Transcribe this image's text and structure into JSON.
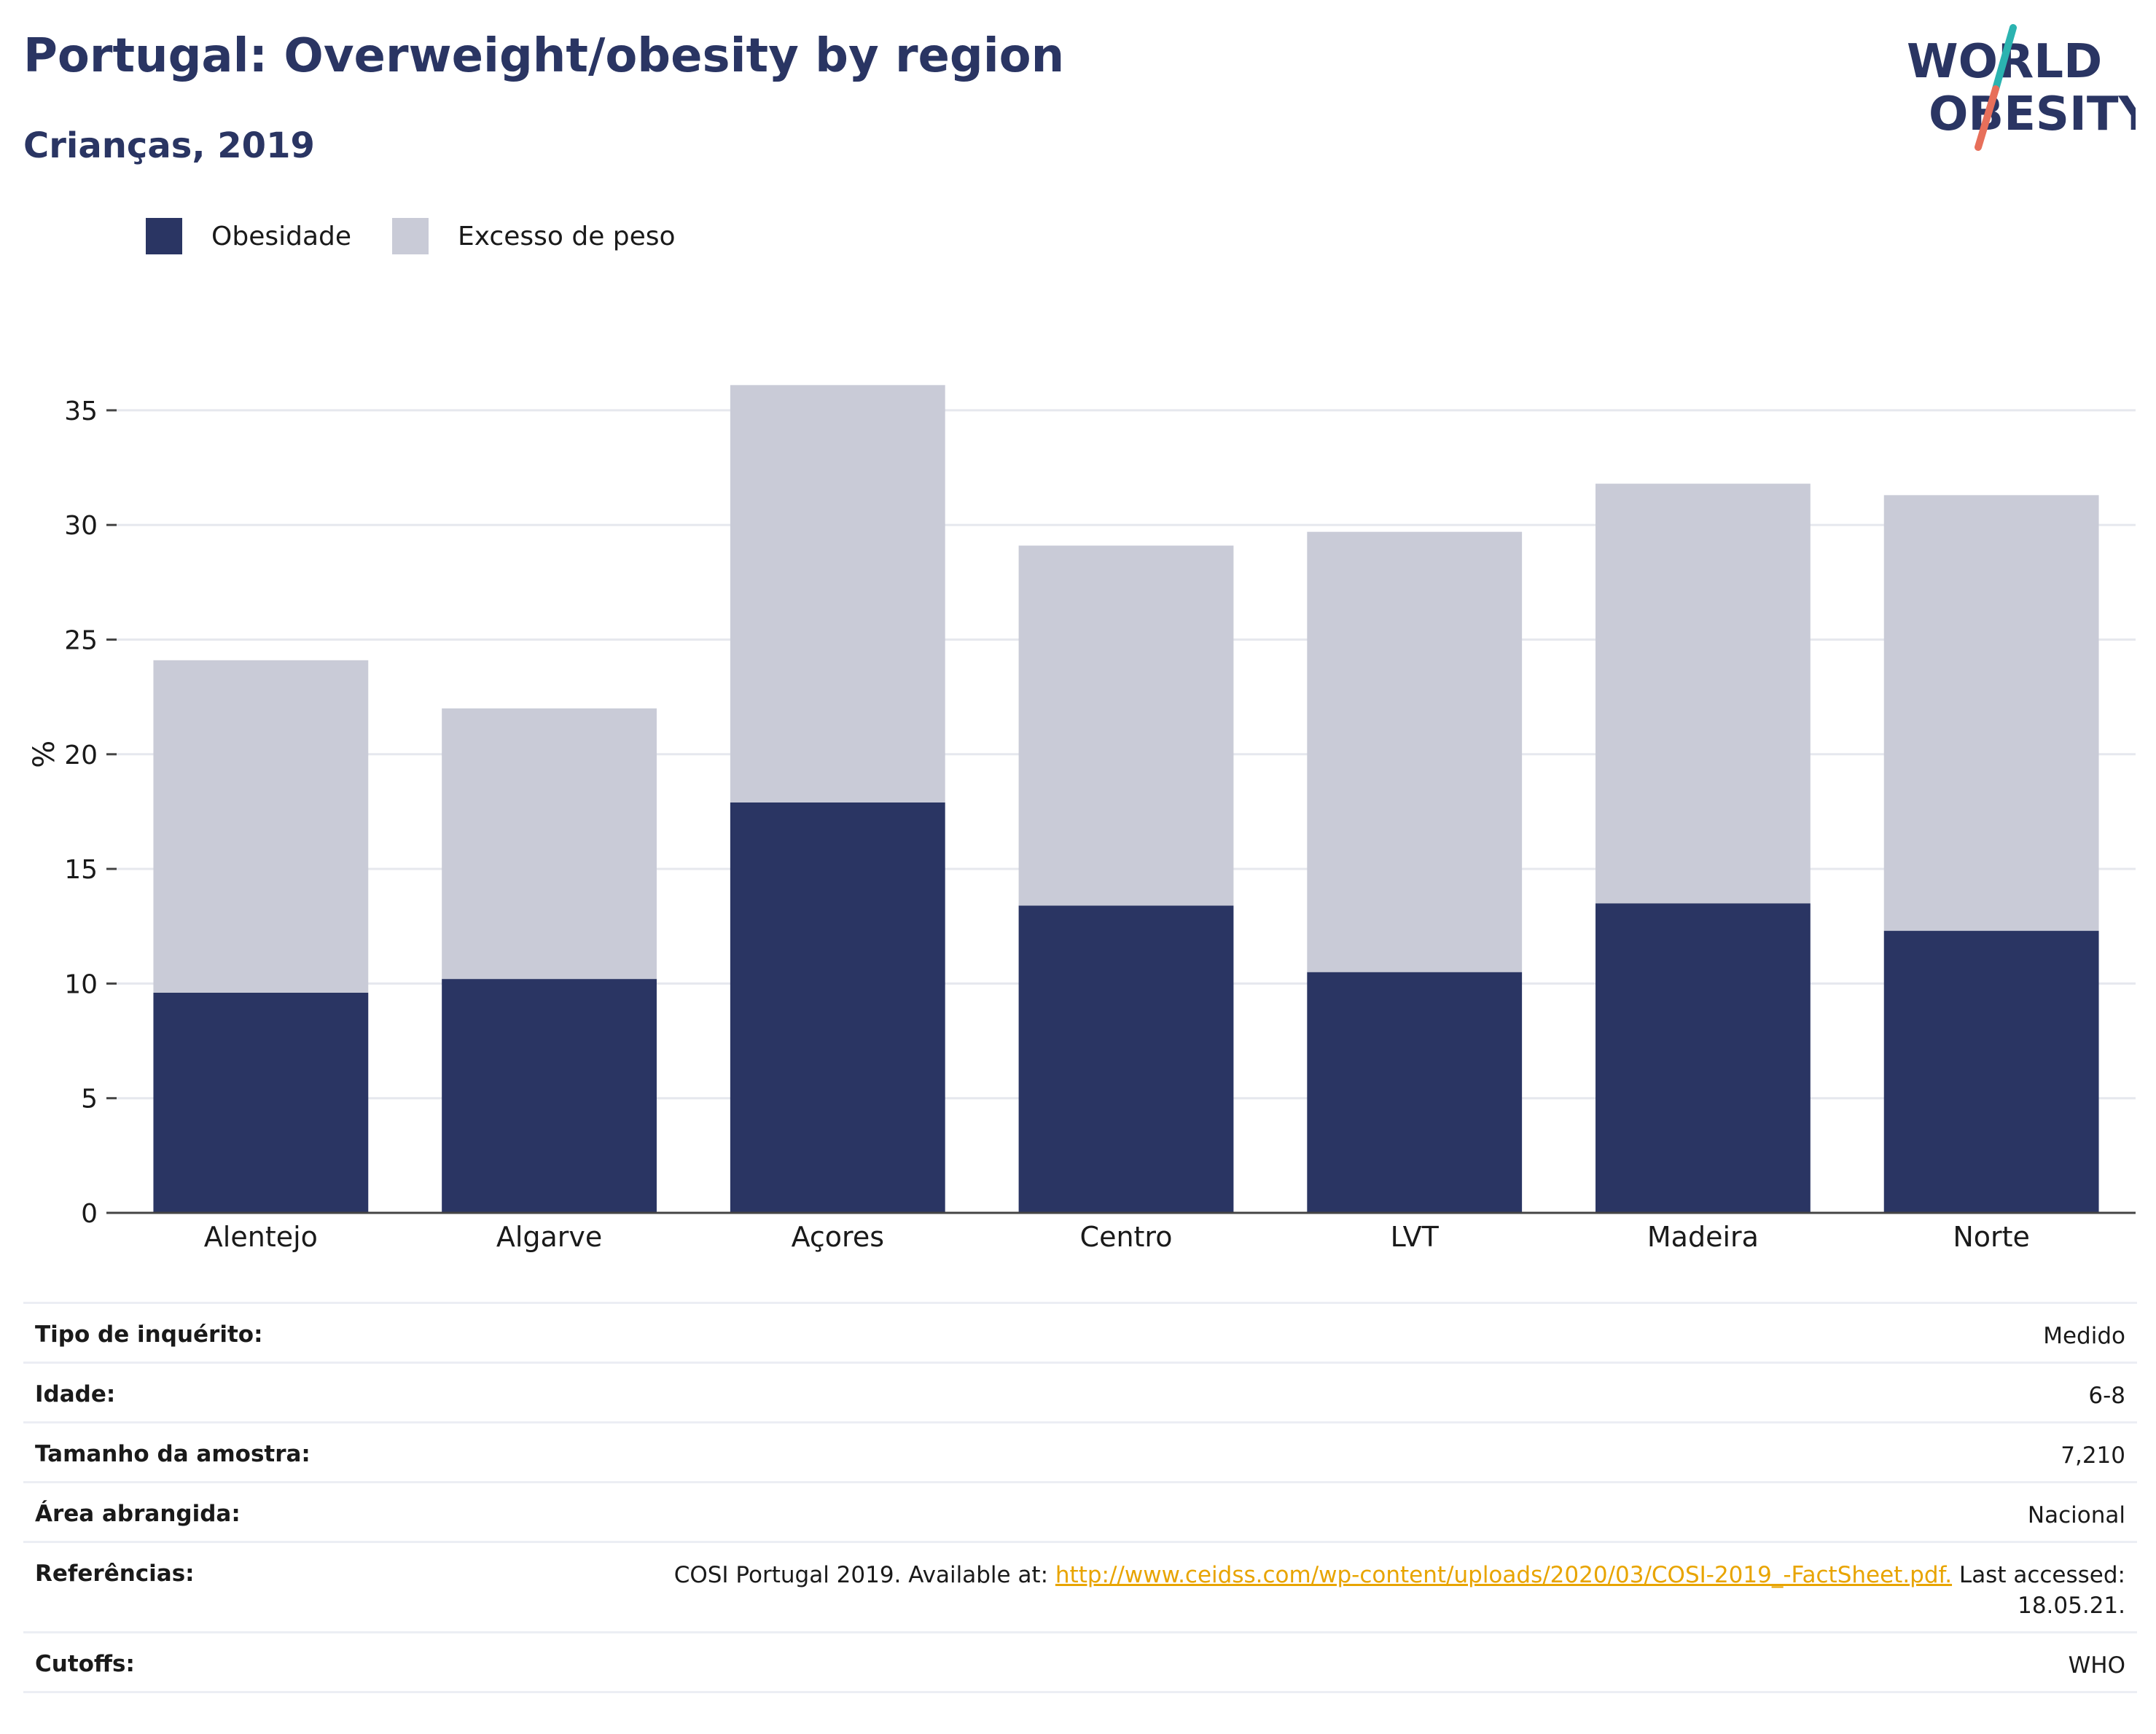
{
  "header": {
    "title": "Portugal: Overweight/obesity by region",
    "subtitle": "Crianças, 2019"
  },
  "logo": {
    "line1": "WORLD",
    "line2": "OBESITY",
    "accent_teal": "#2bb3b0",
    "accent_coral": "#e76f5a",
    "text_color": "#2a3563"
  },
  "colors": {
    "obesity": "#2a3563",
    "overweight": "#c9cbd7",
    "title": "#2a3563",
    "grid": "#e6e8ee",
    "link": "#e8a400"
  },
  "chart_data": {
    "type": "bar",
    "stacked": true,
    "categories": [
      "Alentejo",
      "Algarve",
      "Açores",
      "Centro",
      "LVT",
      "Madeira",
      "Norte"
    ],
    "series": [
      {
        "name": "Obesidade",
        "values": [
          9.6,
          10.2,
          17.9,
          13.4,
          10.5,
          13.5,
          12.3
        ]
      },
      {
        "name": "Excesso de peso",
        "values": [
          14.5,
          11.8,
          18.2,
          15.7,
          19.2,
          18.3,
          19.0
        ]
      }
    ],
    "ylabel": "%",
    "xlabel": "",
    "ylim": [
      0,
      37
    ],
    "yticks": [
      0,
      5,
      10,
      15,
      20,
      25,
      30,
      35
    ],
    "grid": true,
    "legend_position": "top-left"
  },
  "info": [
    {
      "label": "Tipo de inquérito:",
      "value": "Medido"
    },
    {
      "label": "Idade:",
      "value": "6-8"
    },
    {
      "label": "Tamanho da amostra:",
      "value": "7,210"
    },
    {
      "label": "Área abrangida:",
      "value": "Nacional"
    },
    {
      "label": "Referências:",
      "value_prefix": "COSI Portugal 2019. Available at: ",
      "value_link": "http://www.ceidss.com/wp-content/uploads/2020/03/COSI-2019_-FactSheet.pdf.",
      "value_suffix": " Last accessed:",
      "value_line2": "18.05.21."
    },
    {
      "label": "Cutoffs:",
      "value": "WHO"
    }
  ]
}
